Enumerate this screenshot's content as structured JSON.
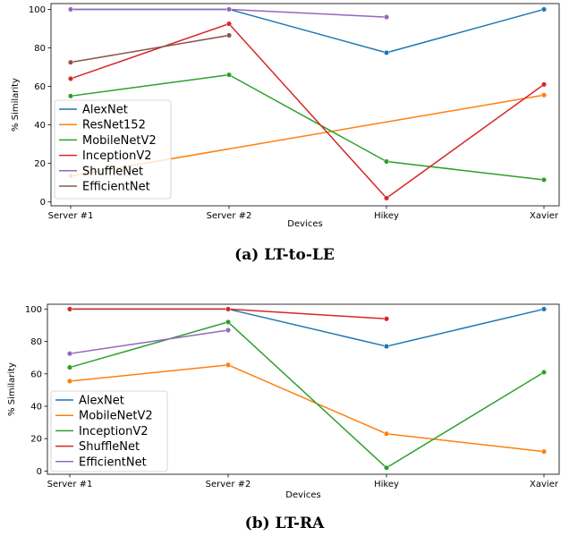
{
  "chart_data": [
    {
      "type": "line",
      "caption": "(a) LT-to-LE",
      "xlabel": "Devices",
      "ylabel": "% Similarity",
      "categories": [
        "Server #1",
        "Server #2",
        "Hikey",
        "Xavier"
      ],
      "ylim": [
        -2,
        103
      ],
      "yticks": [
        0,
        20,
        40,
        60,
        80,
        100
      ],
      "grid": false,
      "legend_position": "lower-left",
      "series": [
        {
          "name": "AlexNet",
          "color": "#1f77b4",
          "values": [
            100,
            100,
            77.5,
            100
          ]
        },
        {
          "name": "ResNet152",
          "color": "#ff7f0e",
          "values": [
            13.5,
            null,
            null,
            55.5
          ]
        },
        {
          "name": "MobileNetV2",
          "color": "#2ca02c",
          "values": [
            55,
            66,
            21,
            11.5
          ]
        },
        {
          "name": "InceptionV2",
          "color": "#d62728",
          "values": [
            64,
            92.5,
            2,
            61
          ]
        },
        {
          "name": "ShuffleNet",
          "color": "#9467bd",
          "values": [
            100,
            100,
            96,
            null
          ]
        },
        {
          "name": "EfficientNet",
          "color": "#8c564b",
          "values": [
            72.5,
            86.5,
            null,
            null
          ]
        }
      ]
    },
    {
      "type": "line",
      "caption": "(b) LT-RA",
      "xlabel": "Devices",
      "ylabel": "% Similarity",
      "categories": [
        "Server #1",
        "Server #2",
        "Hikey",
        "Xavier"
      ],
      "ylim": [
        -2,
        103
      ],
      "yticks": [
        0,
        20,
        40,
        60,
        80,
        100
      ],
      "grid": false,
      "legend_position": "lower-left",
      "series": [
        {
          "name": "AlexNet",
          "color": "#1f77b4",
          "values": [
            100,
            100,
            77,
            100
          ]
        },
        {
          "name": "MobileNetV2",
          "color": "#ff7f0e",
          "values": [
            55.5,
            65.5,
            23,
            12
          ]
        },
        {
          "name": "InceptionV2",
          "color": "#2ca02c",
          "values": [
            64,
            92,
            2,
            61
          ]
        },
        {
          "name": "ShuffleNet",
          "color": "#d62728",
          "values": [
            100,
            100,
            94,
            null
          ]
        },
        {
          "name": "EfficientNet",
          "color": "#9467bd",
          "values": [
            72.5,
            87,
            null,
            null
          ]
        }
      ]
    }
  ]
}
